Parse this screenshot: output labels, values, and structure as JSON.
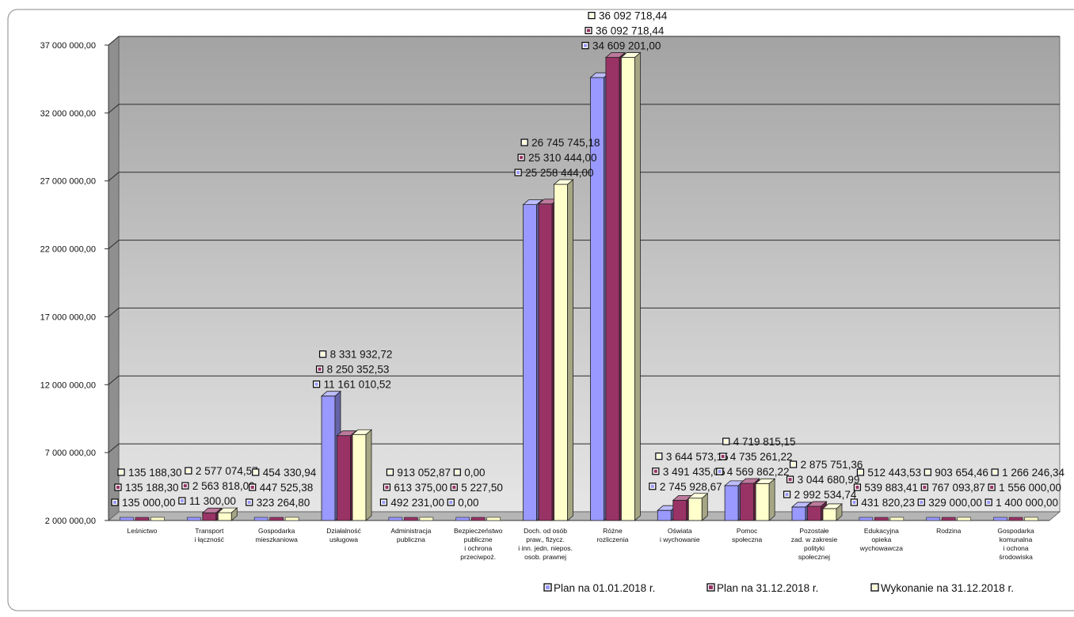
{
  "chart_data": {
    "type": "bar",
    "title": "",
    "xlabel": "",
    "ylabel": "",
    "ylim": [
      2000000,
      37000000
    ],
    "yticks": [
      "2 000 000,00",
      "7 000 000,00",
      "12 000 000,00",
      "17 000 000,00",
      "22 000 000,00",
      "27 000 000,00",
      "32 000 000,00",
      "37 000 000,00"
    ],
    "grid": true,
    "legend_position": "bottom",
    "categories": [
      "Leśnictwo",
      "Transport\ni łączność",
      "Gospodarka\nmieszkaniowa",
      "Działalność\nusługowa",
      "Administracja\npubliczna",
      "Bezpieczeństwo\npubliczne\ni ochrona\nprzeciwpoż.",
      "Doch. od osób\npraw., fizycz.\ni inn. jedn. niepos.\nosob. prawnej",
      "Różne\nrozliczenia",
      "Oświata\ni wychowanie",
      "Pomoc\nspołeczna",
      "Pozostałe\nzad. w zakresie\npolityki\nspołecznej",
      "Edukacyjna\nopieka\nwychowawcza",
      "Rodzina",
      "Gospodarka\nkomunalna\ni ochona\nśrodowiska"
    ],
    "series": [
      {
        "name": "Plan na 01.01.2018 r.",
        "color": "#9999ff",
        "values": [
          135000.0,
          11300.0,
          323264.8,
          11161010.52,
          492231.0,
          0.0,
          25258444.0,
          34609201.0,
          2745928.67,
          4569862.22,
          2992534.74,
          431820.23,
          329000.0,
          1400000.0
        ],
        "labels": [
          "135 000,00",
          "11 300,00",
          "323 264,80",
          "11 161 010,52",
          "492 231,00",
          "0,00",
          "25 258 444,00",
          "34 609 201,00",
          "2 745 928,67",
          "4 569 862,22",
          "2 992 534,74",
          "431 820,23",
          "329 000,00",
          "1 400 000,00"
        ]
      },
      {
        "name": "Plan na 31.12.2018 r.",
        "color": "#993366",
        "values": [
          135188.3,
          2563818.0,
          447525.38,
          8250352.53,
          613375.0,
          5227.5,
          25310444.0,
          36092718.44,
          3491435.05,
          4735261.22,
          3044680.99,
          539883.41,
          767093.87,
          1556000.0
        ],
        "labels": [
          "135 188,30",
          "2 563 818,00",
          "447 525,38",
          "8 250 352,53",
          "613 375,00",
          "5 227,50",
          "25 310 444,00",
          "36 092 718,44",
          "3 491 435,05",
          "4 735 261,22",
          "3 044 680,99",
          "539 883,41",
          "767 093,87",
          "1 556 000,00"
        ]
      },
      {
        "name": "Wykonanie na 31.12.2018 r.",
        "color": "#ffffcc",
        "values": [
          135188.3,
          2577074.57,
          454330.94,
          8331932.72,
          913052.87,
          0.0,
          26745745.18,
          36092718.44,
          3644573.15,
          4719815.15,
          2875751.36,
          512443.53,
          903654.46,
          1266246.34
        ],
        "labels": [
          "135 188,30",
          "2 577 074,57",
          "454 330,94",
          "8 331 932,72",
          "913 052,87",
          "0,00",
          "26 745 745,18",
          "36 092 718,44",
          "3 644 573,15",
          "4 719 815,15",
          "2 875 751,36",
          "512 443,53",
          "903 654,46",
          "1 266 246,34"
        ]
      }
    ]
  },
  "colors": {
    "wall_top": "#a3a3a3",
    "wall_bottom": "#e6e6e6",
    "gridline": "#2b2b2b",
    "frame": "#8a8a8a"
  }
}
